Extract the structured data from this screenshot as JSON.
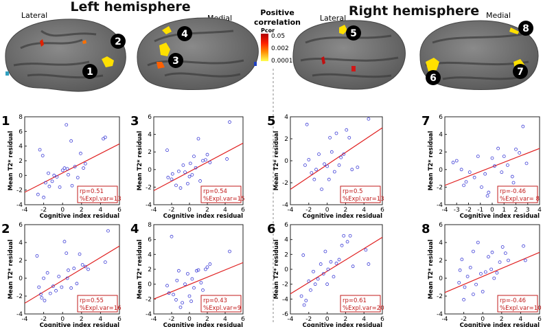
{
  "headings": {
    "left": "Left hemisphere",
    "right": "Right hemisphere"
  },
  "brain_views": {
    "lateral_left": "Lateral",
    "medial_left": "Medial",
    "lateral_right": "Lateral",
    "medial_right": "Medial"
  },
  "colorbar": {
    "title_line1": "Positive",
    "title_line2": "correlation",
    "label": "Pcor",
    "ticks": [
      "0.05",
      "0.002",
      "0.0001"
    ],
    "colors": [
      "#c00000",
      "#ff2000",
      "#ff8000",
      "#ffe000",
      "#ffff60"
    ]
  },
  "brain_markers": [
    "1",
    "2",
    "3",
    "4",
    "5",
    "6",
    "7",
    "8"
  ],
  "axis_labels": {
    "x": "Cognitive index residual",
    "y": "Mean T2* residual"
  },
  "colors": {
    "scatter": "#3b3bd6",
    "fit": "#e02020",
    "legend": "#c01818"
  },
  "chart_data": [
    {
      "type": "scatter",
      "id": "1",
      "xlim": [
        -4,
        6
      ],
      "ylim": [
        -4,
        8
      ],
      "xticks": [
        "-4",
        "-2",
        "0",
        "2",
        "4",
        "6"
      ],
      "yticks": [
        "-4",
        "-2",
        "0",
        "2",
        "4",
        "6",
        "8"
      ],
      "r": "rp=0.51",
      "expl": "%Expl.var=13",
      "fit": [
        [
          -4,
          -2.3
        ],
        [
          6,
          4.3
        ]
      ],
      "points": [
        [
          -2.4,
          3.5
        ],
        [
          -2.1,
          2.7
        ],
        [
          -1.8,
          -1.0
        ],
        [
          -1.5,
          0.3
        ],
        [
          -1.4,
          -1.5
        ],
        [
          -1.1,
          -0.8
        ],
        [
          -0.9,
          0.0
        ],
        [
          -0.6,
          -0.2
        ],
        [
          -0.3,
          -1.6
        ],
        [
          0.0,
          0.7
        ],
        [
          0.2,
          1.0
        ],
        [
          0.4,
          6.9
        ],
        [
          0.6,
          0.1
        ],
        [
          0.9,
          4.7
        ],
        [
          1.0,
          -1.4
        ],
        [
          1.3,
          1.2
        ],
        [
          1.6,
          -0.3
        ],
        [
          1.9,
          3.0
        ],
        [
          2.2,
          1.0
        ],
        [
          2.4,
          1.6
        ],
        [
          2.5,
          -1.7
        ],
        [
          4.3,
          5.0
        ],
        [
          4.5,
          5.2
        ],
        [
          -2.0,
          -3.0
        ],
        [
          -2.6,
          -2.6
        ],
        [
          0.5,
          0.9
        ]
      ]
    },
    {
      "type": "scatter",
      "id": "3",
      "xlim": [
        -4,
        6
      ],
      "ylim": [
        -4,
        6
      ],
      "xticks": [
        "-4",
        "-2",
        "0",
        "2",
        "4",
        "6"
      ],
      "yticks": [
        "-4",
        "-2",
        "0",
        "2",
        "4",
        "6"
      ],
      "r": "rp=0.54",
      "expl": "%Expl.var=15",
      "fit": [
        [
          -4,
          -2.4
        ],
        [
          6,
          3.0
        ]
      ],
      "points": [
        [
          -2.5,
          2.2
        ],
        [
          -2.0,
          -1.1
        ],
        [
          -1.9,
          -0.5
        ],
        [
          -1.5,
          -1.8
        ],
        [
          -1.2,
          -0.2
        ],
        [
          -1.0,
          -2.1
        ],
        [
          -0.7,
          0.5
        ],
        [
          -0.5,
          -0.3
        ],
        [
          -0.2,
          -1.6
        ],
        [
          0.1,
          0.7
        ],
        [
          0.3,
          -0.6
        ],
        [
          0.5,
          1.5
        ],
        [
          0.7,
          0.2
        ],
        [
          1.0,
          3.5
        ],
        [
          1.2,
          -1.3
        ],
        [
          1.5,
          1.0
        ],
        [
          1.8,
          1.1
        ],
        [
          2.0,
          1.7
        ],
        [
          2.3,
          0.8
        ],
        [
          -2.4,
          -0.9
        ],
        [
          4.5,
          5.4
        ],
        [
          4.2,
          1.2
        ],
        [
          0.0,
          -0.8
        ]
      ]
    },
    {
      "type": "scatter",
      "id": "5",
      "xlim": [
        -4,
        6
      ],
      "ylim": [
        -4,
        4
      ],
      "xticks": [
        "-4",
        "-2",
        "0",
        "2",
        "4",
        "6"
      ],
      "yticks": [
        "-4",
        "-2",
        "0",
        "2",
        "4"
      ],
      "r": "rp=0.5",
      "expl": "%Expl.var=13",
      "fit": [
        [
          -4,
          -2.6
        ],
        [
          6,
          3.0
        ]
      ],
      "points": [
        [
          -2.2,
          3.3
        ],
        [
          -2.0,
          0.1
        ],
        [
          -1.7,
          -1.1
        ],
        [
          -1.4,
          -1.7
        ],
        [
          -1.2,
          -0.8
        ],
        [
          -0.9,
          0.6
        ],
        [
          -0.6,
          -2.6
        ],
        [
          -0.3,
          -0.3
        ],
        [
          0.0,
          -0.5
        ],
        [
          0.3,
          2.1
        ],
        [
          0.5,
          0.8
        ],
        [
          0.8,
          -1.0
        ],
        [
          1.0,
          2.5
        ],
        [
          1.3,
          -0.4
        ],
        [
          1.5,
          0.3
        ],
        [
          1.8,
          0.6
        ],
        [
          2.1,
          2.8
        ],
        [
          2.4,
          2.1
        ],
        [
          2.7,
          -0.8
        ],
        [
          -2.4,
          -0.4
        ],
        [
          4.5,
          3.8
        ],
        [
          3.3,
          -0.6
        ],
        [
          0.2,
          -1.7
        ]
      ]
    },
    {
      "type": "scatter",
      "id": "7",
      "xlim": [
        -4,
        4
      ],
      "ylim": [
        -4,
        6
      ],
      "xticks": [
        "-4",
        "-3",
        "-2",
        "-1",
        "0",
        "1",
        "2",
        "3",
        "4"
      ],
      "yticks": [
        "-4",
        "-2",
        "0",
        "2",
        "4",
        "6"
      ],
      "r": "rp=-0.46",
      "expl": "%Expl.var= 8",
      "fit": [
        [
          -4,
          -1.8
        ],
        [
          4,
          2.4
        ]
      ],
      "points": [
        [
          -3.3,
          0.8
        ],
        [
          -3.0,
          1.0
        ],
        [
          -2.6,
          0.0
        ],
        [
          -2.2,
          -1.4
        ],
        [
          -1.9,
          -0.3
        ],
        [
          -1.5,
          -0.9
        ],
        [
          -1.2,
          1.5
        ],
        [
          -0.9,
          -2.0
        ],
        [
          -0.6,
          -0.5
        ],
        [
          -0.3,
          -2.6
        ],
        [
          0.0,
          1.3
        ],
        [
          0.2,
          0.4
        ],
        [
          0.5,
          2.4
        ],
        [
          0.8,
          -0.3
        ],
        [
          1.0,
          1.5
        ],
        [
          1.3,
          0.5
        ],
        [
          1.7,
          -0.8
        ],
        [
          2.0,
          2.3
        ],
        [
          2.3,
          1.9
        ],
        [
          2.6,
          4.9
        ],
        [
          2.9,
          0.7
        ],
        [
          1.8,
          -1.5
        ],
        [
          -2.4,
          -1.8
        ],
        [
          -0.4,
          -3.0
        ]
      ]
    },
    {
      "type": "scatter",
      "id": "2",
      "xlim": [
        -4,
        6
      ],
      "ylim": [
        -4,
        6
      ],
      "xticks": [
        "-4",
        "-2",
        "0",
        "2",
        "4",
        "6"
      ],
      "yticks": [
        "-4",
        "-2",
        "0",
        "2",
        "4",
        "6"
      ],
      "r": "rp=0.55",
      "expl": "%Expl.var=16",
      "fit": [
        [
          -4,
          -2.8
        ],
        [
          6,
          3.6
        ]
      ],
      "points": [
        [
          -2.7,
          2.5
        ],
        [
          -2.5,
          -1.0
        ],
        [
          -2.2,
          -2.2
        ],
        [
          -1.9,
          -2.5
        ],
        [
          -1.6,
          0.6
        ],
        [
          -1.3,
          -1.7
        ],
        [
          -1.0,
          -0.9
        ],
        [
          -0.7,
          -1.4
        ],
        [
          -0.4,
          0.2
        ],
        [
          -0.1,
          -1.0
        ],
        [
          0.2,
          4.1
        ],
        [
          0.4,
          2.8
        ],
        [
          0.6,
          0.9
        ],
        [
          0.9,
          -1.1
        ],
        [
          1.2,
          1.1
        ],
        [
          1.5,
          -0.6
        ],
        [
          1.8,
          2.7
        ],
        [
          2.1,
          1.5
        ],
        [
          2.4,
          1.3
        ],
        [
          2.7,
          1.0
        ],
        [
          4.5,
          1.8
        ],
        [
          4.8,
          5.3
        ],
        [
          -2.3,
          -1.8
        ],
        [
          0.5,
          0.0
        ],
        [
          -2.0,
          0.0
        ]
      ]
    },
    {
      "type": "scatter",
      "id": "4",
      "xlim": [
        -4,
        6
      ],
      "ylim": [
        -4,
        8
      ],
      "xticks": [
        "-4",
        "-2",
        "0",
        "2",
        "4",
        "6"
      ],
      "yticks": [
        "-4",
        "-2",
        "0",
        "2",
        "4",
        "6",
        "8"
      ],
      "r": "rp=0.43",
      "expl": "%Expl.var=9",
      "fit": [
        [
          -4,
          -2.0
        ],
        [
          6,
          2.9
        ]
      ],
      "points": [
        [
          -2.5,
          -0.2
        ],
        [
          -2.0,
          6.4
        ],
        [
          -1.8,
          -1.4
        ],
        [
          -1.5,
          -2.1
        ],
        [
          -1.2,
          1.8
        ],
        [
          -1.0,
          -3.1
        ],
        [
          -0.8,
          -2.5
        ],
        [
          -0.5,
          0.0
        ],
        [
          -0.2,
          1.4
        ],
        [
          0.0,
          -1.6
        ],
        [
          0.3,
          0.7
        ],
        [
          0.5,
          -0.5
        ],
        [
          0.8,
          1.8
        ],
        [
          1.0,
          1.9
        ],
        [
          1.3,
          0.2
        ],
        [
          1.5,
          -0.8
        ],
        [
          1.8,
          2.0
        ],
        [
          2.0,
          2.3
        ],
        [
          2.3,
          2.7
        ],
        [
          -2.3,
          -1.2
        ],
        [
          4.5,
          4.4
        ],
        [
          0.2,
          -2.3
        ],
        [
          -1.4,
          0.5
        ]
      ]
    },
    {
      "type": "scatter",
      "id": "6",
      "xlim": [
        -4,
        6
      ],
      "ylim": [
        -6,
        6
      ],
      "xticks": [
        "-4",
        "-2",
        "0",
        "2",
        "4",
        "6"
      ],
      "yticks": [
        "-6",
        "-4",
        "-2",
        "0",
        "2",
        "4",
        "6"
      ],
      "r": "rp=0.61",
      "expl": "%Expl.var=20",
      "fit": [
        [
          -4,
          -3.3
        ],
        [
          6,
          4.3
        ]
      ],
      "points": [
        [
          -2.8,
          -3.6
        ],
        [
          -2.6,
          1.9
        ],
        [
          -2.3,
          -4.2
        ],
        [
          -2.0,
          -1.6
        ],
        [
          -1.8,
          -2.8
        ],
        [
          -1.5,
          -0.3
        ],
        [
          -1.3,
          -2.0
        ],
        [
          -1.0,
          -1.3
        ],
        [
          -0.7,
          0.7
        ],
        [
          -0.4,
          -0.6
        ],
        [
          -0.2,
          2.4
        ],
        [
          0.1,
          0.0
        ],
        [
          0.4,
          1.0
        ],
        [
          0.7,
          -1.0
        ],
        [
          1.0,
          0.8
        ],
        [
          1.3,
          1.3
        ],
        [
          1.6,
          3.2
        ],
        [
          1.8,
          4.5
        ],
        [
          2.2,
          3.7
        ],
        [
          2.5,
          4.5
        ],
        [
          2.8,
          0.4
        ],
        [
          4.2,
          2.6
        ],
        [
          4.5,
          0.7
        ],
        [
          -2.5,
          -4.8
        ],
        [
          0.0,
          -2.0
        ]
      ]
    },
    {
      "type": "scatter",
      "id": "8",
      "xlim": [
        -4,
        6
      ],
      "ylim": [
        -4,
        6
      ],
      "xticks": [
        "-4",
        "-2",
        "0",
        "2",
        "4",
        "6"
      ],
      "yticks": [
        "-4",
        "-2",
        "0",
        "2",
        "4",
        "6"
      ],
      "r": "rp=-0.46",
      "expl": "%Expl.var=10",
      "fit": [
        [
          -4,
          -1.6
        ],
        [
          6,
          2.9
        ]
      ],
      "points": [
        [
          -2.5,
          -0.5
        ],
        [
          -2.2,
          2.1
        ],
        [
          -1.9,
          -1.0
        ],
        [
          -1.6,
          0.2
        ],
        [
          -1.3,
          1.2
        ],
        [
          -1.0,
          -1.8
        ],
        [
          -0.7,
          -0.7
        ],
        [
          -0.5,
          4.0
        ],
        [
          -0.2,
          0.5
        ],
        [
          0.0,
          -1.5
        ],
        [
          0.3,
          0.7
        ],
        [
          0.6,
          2.4
        ],
        [
          0.9,
          1.0
        ],
        [
          1.2,
          0.0
        ],
        [
          1.5,
          0.6
        ],
        [
          1.8,
          1.8
        ],
        [
          2.1,
          3.5
        ],
        [
          2.4,
          2.8
        ],
        [
          2.7,
          2.0
        ],
        [
          -2.4,
          0.9
        ],
        [
          4.5,
          2.0
        ],
        [
          4.3,
          3.6
        ],
        [
          -1.0,
          3.0
        ],
        [
          -2.0,
          -2.4
        ],
        [
          1.0,
          2.9
        ]
      ]
    }
  ]
}
